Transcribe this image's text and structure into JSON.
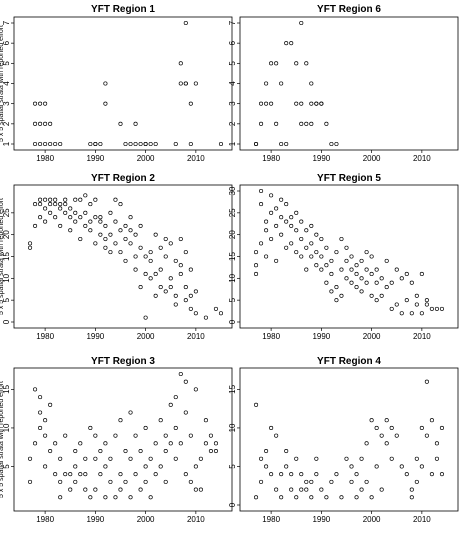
{
  "figure": {
    "panel_ylabel": "5 x 5 spatial strata with reported effort"
  },
  "chart_data": [
    {
      "type": "scatter",
      "title": "YFT Region 1",
      "xlabel": "",
      "ylabel": "5 x 5 spatial strata with reported effort",
      "xlim": [
        1975,
        2016
      ],
      "ylim": [
        1,
        7
      ],
      "x_ticks": [
        1980,
        1990,
        2000,
        2010
      ],
      "y_ticks": [
        1,
        2,
        3,
        4,
        5,
        6,
        7
      ],
      "x": [
        1978,
        1978,
        1978,
        1979,
        1979,
        1979,
        1980,
        1980,
        1980,
        1981,
        1981,
        1982,
        1983,
        1989,
        1990,
        1990,
        1991,
        1992,
        1992,
        1995,
        1996,
        1997,
        1998,
        1998,
        1999,
        2000,
        2000,
        2001,
        2002,
        2006,
        2007,
        2007,
        2008,
        2008,
        2009,
        2009,
        2010,
        2015,
        2008
      ],
      "y": [
        1,
        2,
        3,
        2,
        3,
        1,
        2,
        1,
        3,
        2,
        1,
        1,
        1,
        1,
        1,
        1,
        1,
        3,
        4,
        2,
        1,
        1,
        1,
        2,
        1,
        1,
        1,
        1,
        1,
        1,
        4,
        5,
        4,
        4,
        3,
        1,
        4,
        1,
        7
      ]
    },
    {
      "type": "scatter",
      "title": "YFT Region 6",
      "xlabel": "",
      "ylabel": "",
      "xlim": [
        1975,
        2016
      ],
      "ylim": [
        1,
        7
      ],
      "x_ticks": [
        1980,
        1990,
        2000,
        2010
      ],
      "y_ticks": [
        1,
        2,
        3,
        4,
        5,
        6,
        7
      ],
      "x": [
        1977,
        1977,
        1978,
        1978,
        1979,
        1979,
        1980,
        1980,
        1981,
        1981,
        1982,
        1982,
        1983,
        1983,
        1984,
        1985,
        1985,
        1986,
        1986,
        1986,
        1987,
        1987,
        1988,
        1988,
        1988,
        1989,
        1989,
        1990,
        1990,
        1991,
        1992,
        1993
      ],
      "y": [
        1,
        1,
        2,
        3,
        3,
        4,
        5,
        3,
        5,
        2,
        4,
        1,
        6,
        1,
        6,
        5,
        3,
        3,
        2,
        7,
        2,
        5,
        3,
        2,
        4,
        3,
        3,
        3,
        3,
        2,
        1,
        1
      ]
    },
    {
      "type": "scatter",
      "title": "YFT Region 2",
      "xlabel": "",
      "ylabel": "5 x 5 spatial strata with reported effort",
      "xlim": [
        1975,
        2016
      ],
      "ylim": [
        0,
        30
      ],
      "x_ticks": [
        1980,
        1990,
        2000,
        2010
      ],
      "y_ticks": [
        0,
        5,
        10,
        15,
        20,
        25
      ],
      "x": [
        1977,
        1977,
        1978,
        1978,
        1979,
        1979,
        1979,
        1980,
        1980,
        1980,
        1981,
        1981,
        1981,
        1982,
        1982,
        1982,
        1983,
        1983,
        1983,
        1984,
        1984,
        1984,
        1985,
        1985,
        1985,
        1986,
        1986,
        1986,
        1987,
        1987,
        1987,
        1988,
        1988,
        1988,
        1989,
        1989,
        1989,
        1990,
        1990,
        1990,
        1991,
        1991,
        1991,
        1992,
        1992,
        1992,
        1993,
        1993,
        1993,
        1994,
        1994,
        1994,
        1995,
        1995,
        1995,
        1996,
        1996,
        1996,
        1997,
        1997,
        1997,
        1998,
        1998,
        1998,
        1999,
        1999,
        1999,
        2000,
        2000,
        2000,
        2001,
        2001,
        2001,
        2002,
        2002,
        2002,
        2003,
        2003,
        2003,
        2004,
        2004,
        2004,
        2005,
        2005,
        2005,
        2006,
        2006,
        2006,
        2007,
        2007,
        2007,
        2008,
        2008,
        2008,
        2009,
        2009,
        2009,
        2010,
        2010,
        2012,
        2014,
        2015
      ],
      "y": [
        17,
        18,
        27,
        22,
        28,
        27,
        24,
        28,
        26,
        23,
        27,
        25,
        28,
        27,
        24,
        28,
        26,
        27,
        22,
        25,
        28,
        27,
        24,
        26,
        21,
        28,
        25,
        23,
        28,
        24,
        19,
        29,
        25,
        22,
        27,
        23,
        21,
        28,
        24,
        18,
        23,
        20,
        24,
        22,
        19,
        17,
        25,
        20,
        16,
        28,
        23,
        18,
        21,
        27,
        16,
        22,
        19,
        14,
        24,
        18,
        21,
        20,
        15,
        12,
        22,
        17,
        8,
        15,
        11,
        1,
        14,
        16,
        10,
        20,
        11,
        6,
        17,
        12,
        8,
        19,
        15,
        7,
        18,
        10,
        8,
        14,
        6,
        4,
        19,
        13,
        11,
        16,
        8,
        5,
        12,
        6,
        3,
        7,
        2,
        1,
        3,
        2
      ]
    },
    {
      "type": "scatter",
      "title": "YFT Region 5",
      "xlabel": "",
      "ylabel": "",
      "xlim": [
        1975,
        2016
      ],
      "ylim": [
        0,
        30
      ],
      "x_ticks": [
        1980,
        1990,
        2000,
        2010
      ],
      "y_ticks": [
        0,
        5,
        10,
        15,
        20,
        25,
        30
      ],
      "x": [
        1977,
        1977,
        1977,
        1978,
        1978,
        1978,
        1979,
        1979,
        1979,
        1980,
        1980,
        1980,
        1981,
        1981,
        1981,
        1982,
        1982,
        1982,
        1983,
        1983,
        1983,
        1984,
        1984,
        1984,
        1985,
        1985,
        1985,
        1986,
        1986,
        1986,
        1987,
        1987,
        1987,
        1988,
        1988,
        1988,
        1989,
        1989,
        1989,
        1990,
        1990,
        1990,
        1991,
        1991,
        1991,
        1992,
        1992,
        1992,
        1993,
        1993,
        1993,
        1994,
        1994,
        1994,
        1995,
        1995,
        1995,
        1996,
        1996,
        1996,
        1997,
        1997,
        1997,
        1998,
        1998,
        1998,
        1999,
        1999,
        1999,
        2000,
        2000,
        2000,
        2001,
        2001,
        2001,
        2002,
        2002,
        2003,
        2003,
        2004,
        2004,
        2005,
        2005,
        2006,
        2006,
        2007,
        2007,
        2008,
        2008,
        2009,
        2009,
        2010,
        2010,
        2011,
        2011,
        2012,
        2013,
        2014
      ],
      "y": [
        13,
        16,
        11,
        30,
        27,
        18,
        23,
        21,
        15,
        29,
        25,
        19,
        26,
        22,
        14,
        28,
        24,
        20,
        27,
        23,
        17,
        24,
        22,
        18,
        25,
        21,
        16,
        23,
        19,
        15,
        21,
        17,
        12,
        22,
        18,
        15,
        20,
        16,
        13,
        19,
        15,
        12,
        17,
        13,
        9,
        14,
        11,
        7,
        16,
        8,
        5,
        19,
        12,
        6,
        14,
        17,
        10,
        12,
        15,
        9,
        13,
        8,
        11,
        14,
        10,
        7,
        16,
        12,
        9,
        15,
        11,
        6,
        12,
        9,
        5,
        10,
        6,
        14,
        8,
        9,
        3,
        12,
        4,
        10,
        2,
        11,
        5,
        9,
        2,
        6,
        4,
        11,
        2,
        5,
        4,
        3,
        3,
        3
      ]
    },
    {
      "type": "scatter",
      "title": "YFT Region 3",
      "xlabel": "",
      "ylabel": "5 x 5 spatial strata with reported effort",
      "xlim": [
        1975,
        2016
      ],
      "ylim": [
        0,
        17
      ],
      "x_ticks": [
        1980,
        1990,
        2000,
        2010
      ],
      "y_ticks": [
        5,
        10,
        15
      ],
      "x": [
        1977,
        1977,
        1978,
        1978,
        1979,
        1979,
        1979,
        1980,
        1980,
        1980,
        1981,
        1981,
        1982,
        1982,
        1983,
        1983,
        1983,
        1984,
        1984,
        1985,
        1985,
        1986,
        1986,
        1986,
        1987,
        1987,
        1988,
        1988,
        1988,
        1989,
        1989,
        1990,
        1990,
        1990,
        1991,
        1991,
        1992,
        1992,
        1992,
        1993,
        1993,
        1994,
        1994,
        1995,
        1995,
        1995,
        1996,
        1996,
        1997,
        1997,
        1997,
        1998,
        1998,
        1999,
        1999,
        2000,
        2000,
        2000,
        2001,
        2001,
        2002,
        2002,
        2003,
        2003,
        2004,
        2004,
        2004,
        2005,
        2005,
        2006,
        2006,
        2006,
        2007,
        2007,
        2008,
        2008,
        2008,
        2009,
        2009,
        2010,
        2010,
        2010,
        2011,
        2011,
        2012,
        2012,
        2013,
        2013,
        2014,
        2014
      ],
      "y": [
        3,
        6,
        15,
        8,
        12,
        14,
        10,
        11,
        9,
        5,
        13,
        7,
        4,
        8,
        6,
        3,
        1,
        4,
        9,
        2,
        4,
        5,
        3,
        7,
        8,
        4,
        2,
        6,
        4,
        1,
        10,
        9,
        6,
        2,
        4,
        7,
        8,
        1,
        5,
        3,
        6,
        9,
        1,
        4,
        2,
        11,
        7,
        3,
        6,
        12,
        1,
        4,
        9,
        7,
        2,
        5,
        3,
        10,
        1,
        6,
        4,
        8,
        5,
        11,
        3,
        7,
        9,
        8,
        13,
        6,
        10,
        14,
        17,
        8,
        12,
        4,
        16,
        3,
        9,
        2,
        15,
        5,
        6,
        2,
        8,
        11,
        9,
        7,
        8,
        7
      ]
    },
    {
      "type": "scatter",
      "title": "YFT Region 4",
      "xlabel": "",
      "ylabel": "",
      "xlim": [
        1975,
        2016
      ],
      "ylim": [
        0,
        17
      ],
      "x_ticks": [
        1980,
        1990,
        2000,
        2010
      ],
      "y_ticks": [
        0,
        5,
        10,
        15
      ],
      "x": [
        1977,
        1977,
        1978,
        1978,
        1979,
        1979,
        1980,
        1980,
        1981,
        1981,
        1982,
        1982,
        1983,
        1983,
        1984,
        1984,
        1985,
        1985,
        1986,
        1986,
        1987,
        1987,
        1988,
        1988,
        1989,
        1989,
        1990,
        1991,
        1992,
        1993,
        1994,
        1995,
        1996,
        1996,
        1997,
        1997,
        1998,
        1998,
        1999,
        1999,
        2000,
        2000,
        2001,
        2001,
        2002,
        2002,
        2003,
        2003,
        2004,
        2004,
        2005,
        2006,
        2007,
        2008,
        2008,
        2009,
        2009,
        2010,
        2010,
        2011,
        2011,
        2012,
        2012,
        2013,
        2013,
        2014,
        2014
      ],
      "y": [
        1,
        13,
        3,
        6,
        5,
        7,
        4,
        10,
        2,
        9,
        4,
        1,
        5,
        7,
        4,
        2,
        1,
        6,
        4,
        2,
        2,
        3,
        3,
        1,
        4,
        6,
        2,
        1,
        3,
        4,
        1,
        6,
        3,
        5,
        1,
        4,
        6,
        2,
        8,
        3,
        11,
        1,
        10,
        5,
        9,
        2,
        11,
        8,
        6,
        10,
        9,
        5,
        4,
        2,
        1,
        6,
        3,
        10,
        5,
        16,
        9,
        4,
        11,
        8,
        6,
        10,
        4
      ]
    }
  ]
}
